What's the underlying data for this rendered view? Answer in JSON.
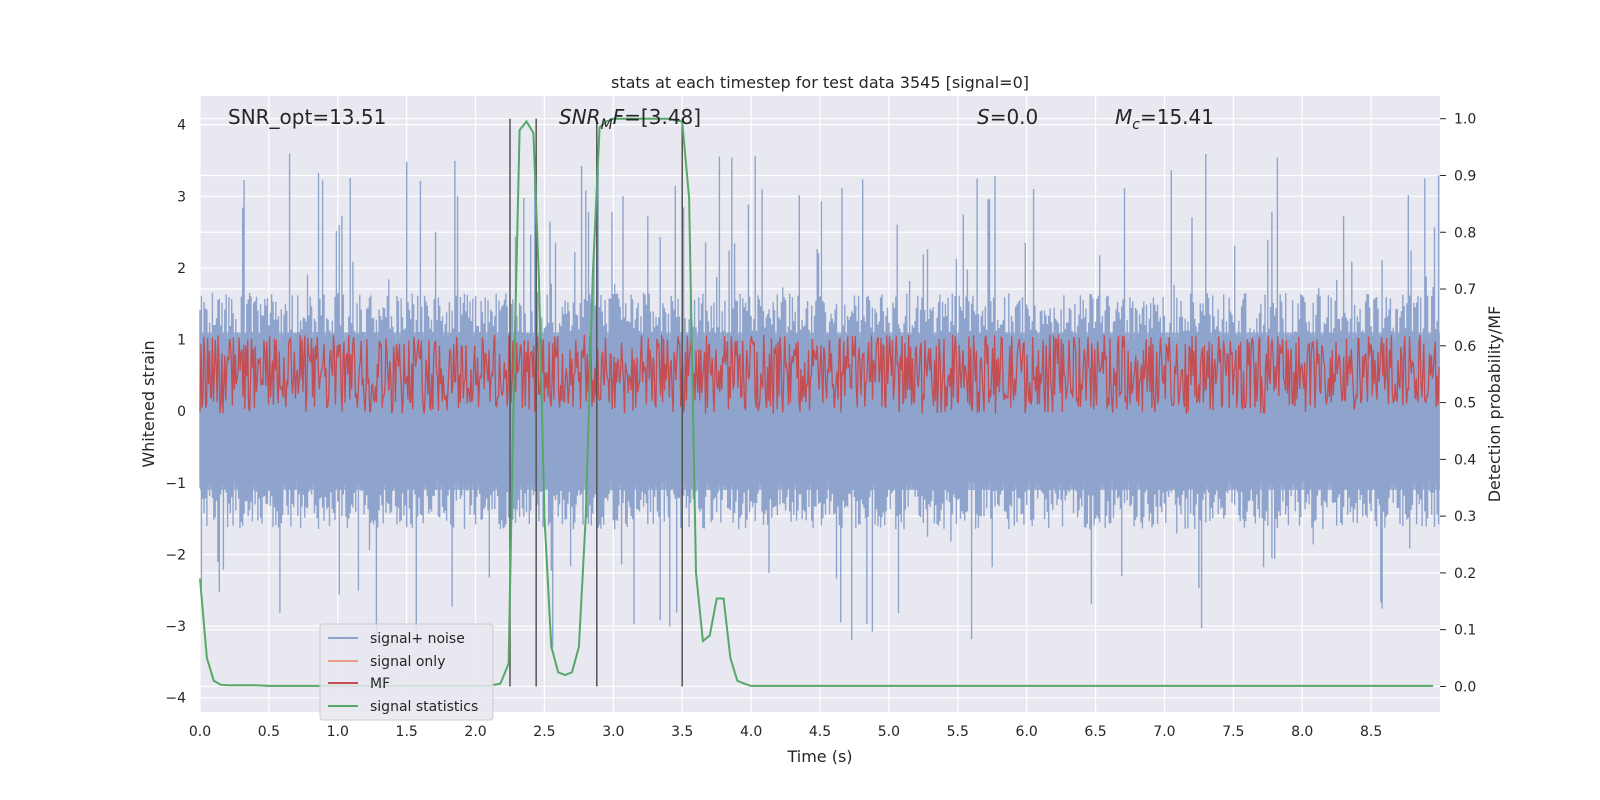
{
  "chart_data": {
    "type": "line",
    "title": "stats at each timestep for test data 3545 [signal=0]",
    "xlabel": "Time (s)",
    "ylabel_left": "Whitened strain",
    "ylabel_right": "Detection probability/MF",
    "xlim": [
      0,
      9.0
    ],
    "ylim_left": [
      -4.2,
      4.4
    ],
    "ylim_right": [
      -0.045,
      1.04
    ],
    "x_ticks": [
      "0.0",
      "0.5",
      "1.0",
      "1.5",
      "2.0",
      "2.5",
      "3.0",
      "3.5",
      "4.0",
      "4.5",
      "5.0",
      "5.5",
      "6.0",
      "6.5",
      "7.0",
      "7.5",
      "8.0",
      "8.5"
    ],
    "y_ticks_left": [
      "−4",
      "−3",
      "−2",
      "−1",
      "0",
      "1",
      "2",
      "3",
      "4"
    ],
    "y_ticks_right": [
      "0.0",
      "0.1",
      "0.2",
      "0.3",
      "0.4",
      "0.5",
      "0.6",
      "0.7",
      "0.8",
      "0.9",
      "1.0"
    ],
    "grid": true,
    "legend_position": "lower-left",
    "colors": {
      "signal_noise": "#8fa4cd",
      "signal_only": "#e89d84",
      "mf": "#c44e52",
      "signal_statistics": "#55a868",
      "vlines": "#555555",
      "axes_bg": "#e8e8f0"
    },
    "annotations": {
      "snr_opt": "SNR_opt=13.51",
      "snr_mf_sym": "SNR",
      "snr_mf_sub": "M",
      "snr_mf_sym2": "F",
      "snr_mf_val": "=[3.48]",
      "s_sym": "S",
      "s_val": "=0.0",
      "mc_sym": "M",
      "mc_sub": "c",
      "mc_val": "=15.41"
    },
    "series": [
      {
        "name": "signal+ noise",
        "style": "filled-noise",
        "description_envelope": {
          "mean": 0.0,
          "typical_upper": 1.5,
          "typical_lower": -1.5,
          "max": 4.0,
          "min": -3.5
        }
      },
      {
        "name": "signal only",
        "style": "line",
        "values": []
      },
      {
        "name": "MF",
        "style": "noise-line",
        "axis": "right",
        "description_envelope": {
          "mean": 0.55,
          "typical_upper": 0.6,
          "typical_lower": 0.5,
          "max": 0.62,
          "min": 0.49
        }
      },
      {
        "name": "signal statistics",
        "style": "line",
        "axis": "right",
        "x": [
          0.0,
          0.05,
          0.1,
          0.15,
          0.2,
          0.3,
          0.4,
          0.5,
          0.6,
          0.8,
          1.0,
          1.2,
          1.5,
          1.8,
          2.0,
          2.1,
          2.18,
          2.24,
          2.28,
          2.32,
          2.37,
          2.42,
          2.46,
          2.5,
          2.55,
          2.6,
          2.65,
          2.7,
          2.75,
          2.8,
          2.85,
          2.9,
          2.95,
          3.0,
          3.1,
          3.2,
          3.3,
          3.4,
          3.5,
          3.55,
          3.6,
          3.65,
          3.7,
          3.75,
          3.8,
          3.85,
          3.9,
          3.95,
          4.0,
          4.05,
          4.1,
          4.5,
          5.0,
          6.0,
          7.0,
          8.0,
          8.95
        ],
        "y": [
          0.19,
          0.05,
          0.01,
          0.003,
          0.002,
          0.002,
          0.002,
          0.001,
          0.001,
          0.001,
          0.001,
          0.001,
          0.001,
          0.001,
          0.001,
          0.001,
          0.005,
          0.04,
          0.55,
          0.98,
          0.995,
          0.975,
          0.72,
          0.3,
          0.07,
          0.025,
          0.02,
          0.025,
          0.07,
          0.3,
          0.72,
          0.985,
          0.995,
          1.0,
          1.0,
          1.0,
          1.0,
          1.0,
          0.995,
          0.86,
          0.2,
          0.08,
          0.09,
          0.155,
          0.155,
          0.05,
          0.01,
          0.005,
          0.001,
          0.001,
          0.001,
          0.001,
          0.001,
          0.001,
          0.001,
          0.001,
          0.001
        ]
      }
    ],
    "vlines_x": [
      2.25,
      2.44,
      2.88,
      3.5
    ]
  }
}
